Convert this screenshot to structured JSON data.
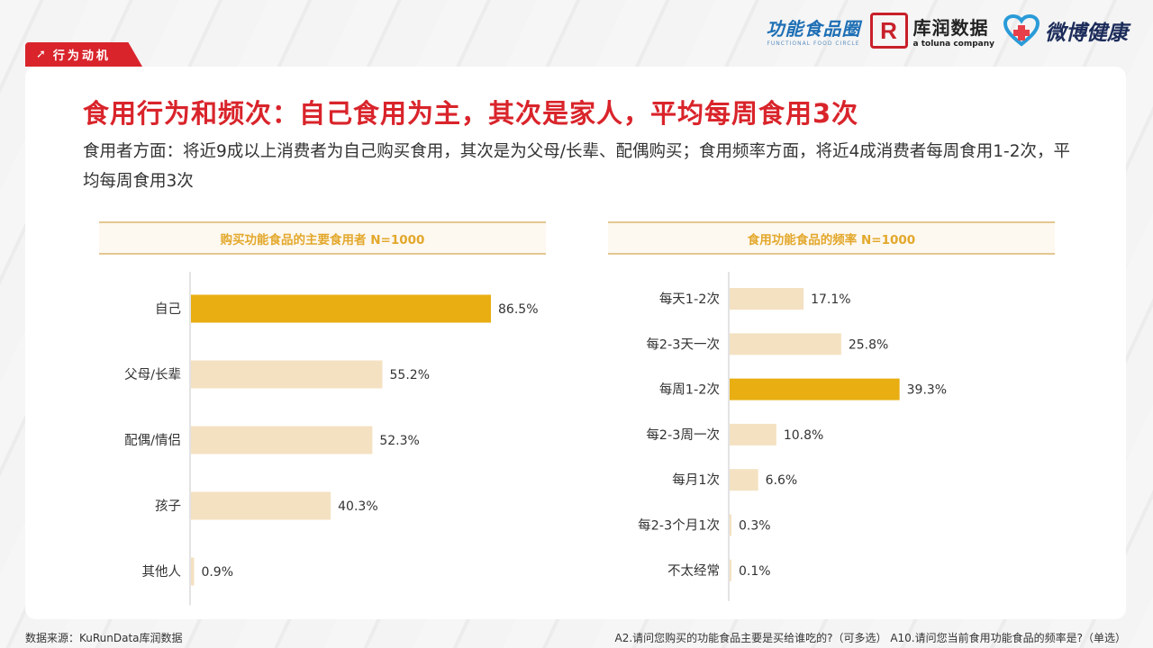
{
  "section_tag": "行为动机",
  "logos": {
    "logo1_main": "功能食品圈",
    "logo1_sub": "FUNCTIONAL FOOD CIRCLE",
    "logo2_mark": "R",
    "logo2_cn": "库润数据",
    "logo2_en": "a toluna company",
    "logo3_name": "微博健康"
  },
  "title": "食用行为和频次：自己食用为主，其次是家人，平均每周食用3次",
  "description": "食用者方面：将近9成以上消费者为自己购买食用，其次是为父母/长辈、配偶购买；食用频率方面，将近4成消费者每周食用1-2次，平均每周食用3次",
  "colors": {
    "accent": "#d9242b",
    "highlight_bar": "#e8ae12",
    "bar": "#f4e1c1",
    "header_text": "#e3a82b"
  },
  "chart_data": [
    {
      "type": "bar",
      "orientation": "horizontal",
      "title": "购买功能食品的主要食用者 N=1000",
      "categories": [
        "自己",
        "父母/长辈",
        "配偶/情侣",
        "孩子",
        "其他人"
      ],
      "values": [
        86.5,
        55.2,
        52.3,
        40.3,
        0.9
      ],
      "value_labels": [
        "86.5%",
        "55.2%",
        "52.3%",
        "40.3%",
        "0.9%"
      ],
      "highlight_index": 0,
      "xlim": [
        0,
        100
      ]
    },
    {
      "type": "bar",
      "orientation": "horizontal",
      "title": "食用功能食品的频率 N=1000",
      "categories": [
        "每天1-2次",
        "每2-3天一次",
        "每周1-2次",
        "每2-3周一次",
        "每月1次",
        "每2-3个月1次",
        "不太经常"
      ],
      "values": [
        17.1,
        25.8,
        39.3,
        10.8,
        6.6,
        0.3,
        0.1
      ],
      "value_labels": [
        "17.1%",
        "25.8%",
        "39.3%",
        "10.8%",
        "6.6%",
        "0.3%",
        "0.1%"
      ],
      "highlight_index": 2,
      "xlim": [
        0,
        100
      ]
    }
  ],
  "footer": {
    "source": "数据来源：KuRunData库润数据",
    "questions": "A2.请问您购买的功能食品主要是买给谁吃的?（可多选） A10.请问您当前食用功能食品的频率是?（单选）"
  }
}
